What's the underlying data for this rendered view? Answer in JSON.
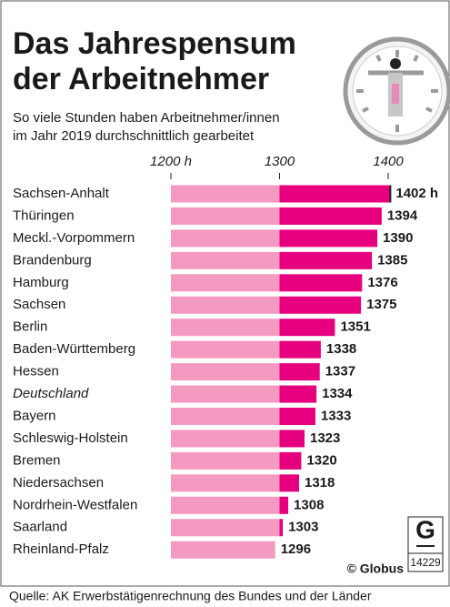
{
  "chart_data": {
    "type": "bar",
    "orientation": "horizontal",
    "title": [
      "Das Jahrespensum",
      "der Arbeitnehmer"
    ],
    "subtitle": [
      "So viele Stunden haben Arbeitnehmer/innen",
      "im Jahr 2019 durchschnittlich gearbeitet"
    ],
    "categories": [
      "Sachsen-Anhalt",
      "Thüringen",
      "Meckl.-Vorpommern",
      "Brandenburg",
      "Hamburg",
      "Sachsen",
      "Berlin",
      "Baden-Württemberg",
      "Hessen",
      "Deutschland",
      "Bayern",
      "Schleswig-Holstein",
      "Bremen",
      "Niedersachsen",
      "Nordrhein-Westfalen",
      "Saarland",
      "Rheinland-Pfalz"
    ],
    "values": [
      1402,
      1394,
      1390,
      1385,
      1376,
      1375,
      1351,
      1338,
      1337,
      1334,
      1333,
      1323,
      1320,
      1318,
      1308,
      1303,
      1296
    ],
    "value_labels": [
      "1402 h",
      "1394",
      "1390",
      "1385",
      "1376",
      "1375",
      "1351",
      "1338",
      "1337",
      "1334",
      "1333",
      "1323",
      "1320",
      "1318",
      "1308",
      "1303",
      "1296"
    ],
    "italic_category": 9,
    "colors": [
      "#f49ac1",
      "#e6007e"
    ],
    "xlim": [
      1200,
      1400
    ],
    "xticks": [
      {
        "value": 1200,
        "label": "1200 h"
      },
      1300,
      1400
    ],
    "source": "Quelle: AK Erwerbstätigenrechnung des Bundes und der Länder",
    "credit": "© Globus",
    "graphic_id": "14229"
  }
}
